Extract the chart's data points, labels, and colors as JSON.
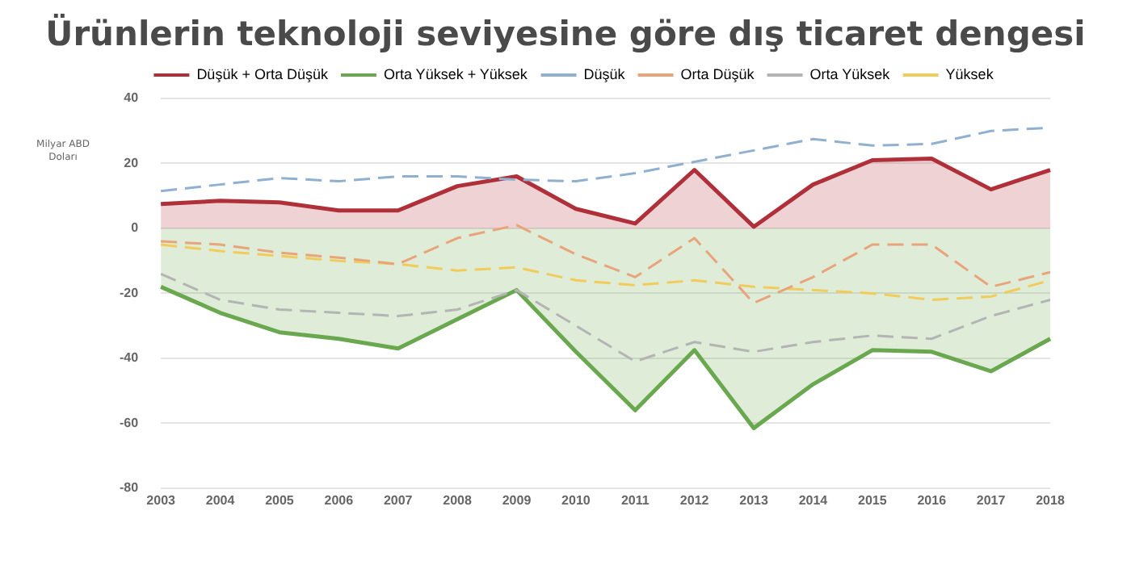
{
  "chart_data": {
    "type": "line",
    "title": "Ürünlerin teknoloji seviyesine göre dış ticaret dengesi",
    "ylabel": "Milyar ABD Doları",
    "categories": [
      "2003",
      "2004",
      "2005",
      "2006",
      "2007",
      "2008",
      "2009",
      "2010",
      "2011",
      "2012",
      "2013",
      "2014",
      "2015",
      "2016",
      "2017",
      "2018"
    ],
    "ylim": [
      -80,
      40
    ],
    "yticks": [
      -80,
      -60,
      -40,
      -20,
      0,
      20,
      40
    ],
    "grid": "y",
    "legend": "top",
    "marker": "none",
    "series": [
      {
        "name": "Düşük",
        "color": "#8fb0d0",
        "line_style": "dashed",
        "values": [
          11.5,
          13.5,
          15.5,
          14.5,
          16,
          16,
          15,
          14.5,
          17,
          20.5,
          24,
          27.5,
          25.5,
          26,
          30,
          31
        ]
      },
      {
        "name": "Orta Düşük",
        "color": "#e8a47a",
        "line_style": "dashed",
        "values": [
          -4,
          -5,
          -7.5,
          -9,
          -11,
          -3,
          1,
          -8,
          -15,
          -3,
          -23,
          -15,
          -5,
          -5,
          -18,
          -13.5
        ]
      },
      {
        "name": "Orta Yüksek",
        "color": "#b4b4b4",
        "line_style": "dashed",
        "values": [
          -14,
          -22,
          -25,
          -26,
          -27,
          -25,
          -19,
          -30,
          -41,
          -35,
          -38,
          -35,
          -33,
          -34,
          -27,
          -22
        ]
      },
      {
        "name": "Yüksek",
        "color": "#f2cc5a",
        "line_style": "dashed",
        "values": [
          -5,
          -7,
          -8.5,
          -10,
          -11,
          -13,
          -12,
          -16,
          -17.5,
          -16,
          -18,
          -19,
          -20,
          -22,
          -21,
          -16
        ]
      },
      {
        "name": "Düşük + Orta Düşük",
        "type": "area",
        "color": "#b0303a",
        "line_style": "solid",
        "values": [
          7.5,
          8.5,
          8,
          5.5,
          5.5,
          13,
          16,
          6,
          1.5,
          18,
          0.5,
          13.5,
          21,
          21.5,
          12,
          18
        ]
      },
      {
        "name": "Orta Yüksek + Yüksek",
        "type": "area",
        "color": "#6aa84f",
        "line_style": "solid",
        "values": [
          -18,
          -26,
          -32,
          -34,
          -37,
          -28,
          -19,
          -38,
          -56,
          -37.5,
          -61.5,
          -48,
          -37.5,
          -38,
          -44,
          -34
        ]
      }
    ]
  }
}
